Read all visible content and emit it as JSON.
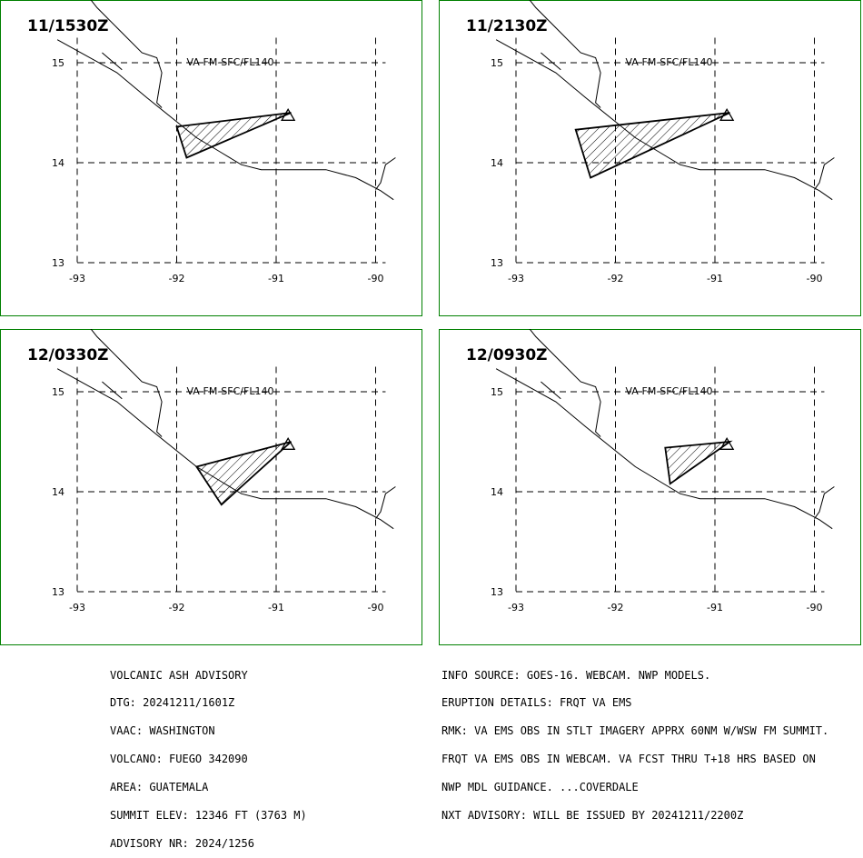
{
  "advisory_left": {
    "lines": [
      "VOLCANIC ASH ADVISORY",
      "DTG: 20241211/1601Z",
      "VAAC: WASHINGTON",
      "VOLCANO: FUEGO 342090",
      "AREA: GUATEMALA",
      "SUMMIT ELEV: 12346 FT (3763 M)",
      "ADVISORY NR: 2024/1256"
    ]
  },
  "advisory_right": {
    "lines": [
      "INFO SOURCE: GOES-16. WEBCAM. NWP MODELS.",
      "ERUPTION DETAILS: FRQT VA EMS",
      "RMK: VA EMS OBS IN STLT IMAGERY APPRX 60NM W/WSW FM SUMMIT.",
      "FRQT VA EMS OBS IN WEBCAM. VA FCST THRU T+18 HRS BASED ON",
      "NWP MDL GUIDANCE. ...COVERDALE",
      "NXT ADVISORY: WILL BE ISSUED BY 20241211/2200Z"
    ]
  },
  "map": {
    "lon_ticks": [
      "-93",
      "-92",
      "-91",
      "-90"
    ],
    "lat_ticks": [
      "15",
      "14",
      "13"
    ],
    "border_color": "#008000",
    "volcano": {
      "lon": -90.88,
      "lat": 14.47
    }
  },
  "panels": [
    {
      "time": "11/1530Z",
      "layer": "VA-FM-SFC/FL140",
      "polygon": [
        [
          -92.0,
          14.36
        ],
        [
          -90.85,
          14.5
        ],
        [
          -91.9,
          14.05
        ]
      ]
    },
    {
      "time": "11/2130Z",
      "layer": "VA-FM-SFC/FL140",
      "polygon": [
        [
          -92.4,
          14.33
        ],
        [
          -90.85,
          14.5
        ],
        [
          -92.25,
          13.85
        ]
      ]
    },
    {
      "time": "12/0330Z",
      "layer": "VA-FM-SFC/FL140",
      "polygon": [
        [
          -91.8,
          14.25
        ],
        [
          -90.85,
          14.5
        ],
        [
          -91.55,
          13.87
        ]
      ]
    },
    {
      "time": "12/0930Z",
      "layer": "VA-FM-SFC/FL140",
      "polygon": [
        [
          -91.5,
          14.44
        ],
        [
          -90.85,
          14.5
        ],
        [
          -91.45,
          14.08
        ]
      ]
    }
  ]
}
